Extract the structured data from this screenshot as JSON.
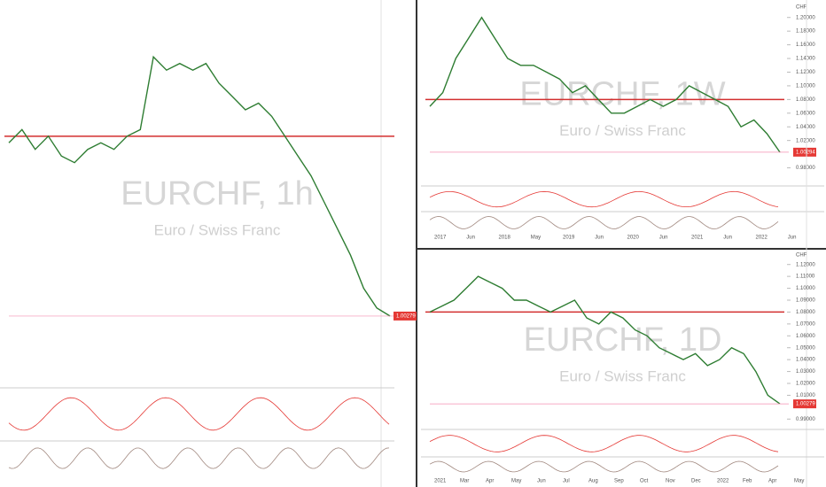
{
  "chart_data": [
    {
      "type": "line",
      "watermark": "EURCHF, 1h",
      "subtitle": "Euro / Swiss Franc",
      "color": "#2e7d32",
      "ylim": [
        0.993,
        1.049
      ],
      "level": 1.03,
      "price": 1.00279,
      "values": [
        1.029,
        1.031,
        1.028,
        1.03,
        1.027,
        1.026,
        1.028,
        1.029,
        1.028,
        1.03,
        1.031,
        1.042,
        1.04,
        1.041,
        1.04,
        1.041,
        1.038,
        1.036,
        1.034,
        1.035,
        1.033,
        1.03,
        1.027,
        1.024,
        1.02,
        1.016,
        1.012,
        1.007,
        1.004,
        1.00279
      ]
    },
    {
      "type": "line",
      "watermark": "EURCHF, 1W",
      "subtitle": "Euro / Swiss Franc",
      "currency": "CHF",
      "color": "#2e7d32",
      "ylim": [
        0.96,
        1.21
      ],
      "level": 1.08,
      "price": 1.00294,
      "yticks": [
        {
          "value": 0.98,
          "label": "0.98000"
        },
        {
          "value": 1.02,
          "label": "1.02000"
        },
        {
          "value": 1.04,
          "label": "1.04000"
        },
        {
          "value": 1.06,
          "label": "1.06000"
        },
        {
          "value": 1.08,
          "label": "1.08000"
        },
        {
          "value": 1.1,
          "label": "1.10000"
        },
        {
          "value": 1.12,
          "label": "1.12000"
        },
        {
          "value": 1.14,
          "label": "1.14000"
        },
        {
          "value": 1.16,
          "label": "1.16000"
        },
        {
          "value": 1.18,
          "label": "1.18000"
        },
        {
          "value": 1.2,
          "label": "1.20000"
        }
      ],
      "xlabels": [
        "2017",
        "Jun",
        "2018",
        "May",
        "2019",
        "Jun",
        "2020",
        "Jun",
        "2021",
        "Jun",
        "2022",
        "Jun"
      ],
      "values": [
        1.07,
        1.09,
        1.14,
        1.17,
        1.2,
        1.17,
        1.14,
        1.13,
        1.13,
        1.12,
        1.11,
        1.09,
        1.1,
        1.08,
        1.06,
        1.06,
        1.07,
        1.08,
        1.07,
        1.08,
        1.1,
        1.09,
        1.08,
        1.07,
        1.04,
        1.05,
        1.03,
        1.00294
      ]
    },
    {
      "type": "line",
      "watermark": "EURCHF, 1D",
      "subtitle": "Euro / Swiss Franc",
      "currency": "CHF",
      "color": "#2e7d32",
      "ylim": [
        0.985,
        1.125
      ],
      "level": 1.08,
      "price": 1.00279,
      "yticks": [
        {
          "value": 0.99,
          "label": "0.99000"
        },
        {
          "value": 1.01,
          "label": "1.01000"
        },
        {
          "value": 1.02,
          "label": "1.02000"
        },
        {
          "value": 1.03,
          "label": "1.03000"
        },
        {
          "value": 1.04,
          "label": "1.04000"
        },
        {
          "value": 1.05,
          "label": "1.05000"
        },
        {
          "value": 1.06,
          "label": "1.06000"
        },
        {
          "value": 1.07,
          "label": "1.07000"
        },
        {
          "value": 1.08,
          "label": "1.08000"
        },
        {
          "value": 1.09,
          "label": "1.09000"
        },
        {
          "value": 1.1,
          "label": "1.10000"
        },
        {
          "value": 1.11,
          "label": "1.11000"
        },
        {
          "value": 1.12,
          "label": "1.12000"
        }
      ],
      "xlabels": [
        "2021",
        "Mar",
        "Apr",
        "May",
        "Jun",
        "Jul",
        "Aug",
        "Sep",
        "Oct",
        "Nov",
        "Dec",
        "2022",
        "Feb",
        "Apr",
        "May"
      ],
      "values": [
        1.08,
        1.085,
        1.09,
        1.1,
        1.11,
        1.105,
        1.1,
        1.09,
        1.09,
        1.085,
        1.08,
        1.085,
        1.09,
        1.075,
        1.07,
        1.08,
        1.075,
        1.065,
        1.06,
        1.05,
        1.045,
        1.04,
        1.045,
        1.035,
        1.04,
        1.05,
        1.045,
        1.03,
        1.01,
        1.00279
      ]
    }
  ]
}
